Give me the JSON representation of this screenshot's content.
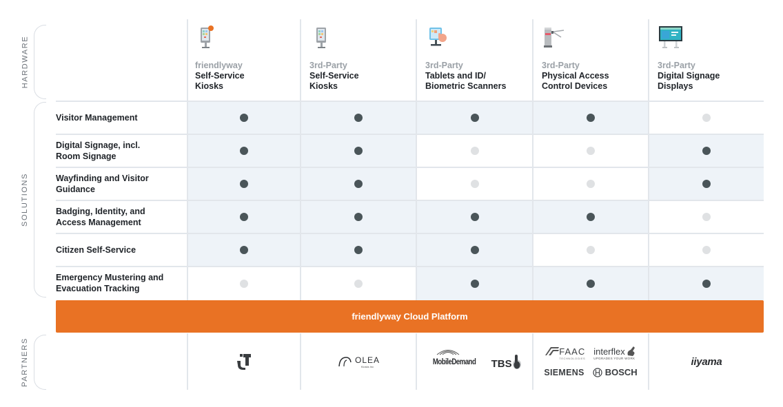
{
  "sections": {
    "hardware": "HARDWARE",
    "solutions": "SOLUTIONS",
    "partners": "PARTNERS"
  },
  "hardware": [
    {
      "brand": "friendlyway",
      "title": "Self-Service Kiosks",
      "icon": "kiosk-featured-icon"
    },
    {
      "brand": "3rd-Party",
      "title": "Self-Service Kiosks",
      "icon": "kiosk-icon"
    },
    {
      "brand": "3rd-Party",
      "title": "Tablets and ID/ Biometric Scanners",
      "icon": "tablet-touch-icon"
    },
    {
      "brand": "3rd-Party",
      "title": "Physical Access Control Devices",
      "icon": "turnstile-icon"
    },
    {
      "brand": "3rd-Party",
      "title": "Digital Signage Displays",
      "icon": "signage-display-icon"
    }
  ],
  "solutions": [
    {
      "label": "Visitor Management",
      "support": [
        true,
        true,
        true,
        true,
        false
      ]
    },
    {
      "label": "Digital Signage, incl. Room Signage",
      "support": [
        true,
        true,
        false,
        false,
        true
      ]
    },
    {
      "label": "Wayfinding and Visitor Guidance",
      "support": [
        true,
        true,
        false,
        false,
        true
      ]
    },
    {
      "label": "Badging, Identity, and Access Management",
      "support": [
        true,
        true,
        true,
        true,
        false
      ]
    },
    {
      "label": "Citizen Self-Service",
      "support": [
        true,
        true,
        true,
        false,
        false
      ]
    },
    {
      "label": "Emergency Mustering and Evacuation Tracking",
      "support": [
        false,
        false,
        true,
        true,
        true
      ]
    }
  ],
  "platform": {
    "label": "friendlyway Cloud Platform",
    "color": "#e97224"
  },
  "partners": [
    {
      "logos": [
        "T"
      ]
    },
    {
      "logos": [
        "OLEA"
      ]
    },
    {
      "logos": [
        "MobileDemand",
        "TBS"
      ]
    },
    {
      "logos": [
        "FAAC",
        "interflex",
        "SIEMENS",
        "BOSCH"
      ]
    },
    {
      "logos": [
        "iiyama"
      ]
    }
  ],
  "partner_text": {
    "olea_sub": "Kiosks Inc",
    "faac_sub": "TECHNOLOGIES",
    "interflex_sub": "UPGRADES YOUR WORK"
  },
  "colors": {
    "active_cell": "#eef3f8",
    "active_dot": "#4a5559",
    "inactive_dot": "#dfe1e3",
    "grid_line": "#e2e6eb"
  }
}
